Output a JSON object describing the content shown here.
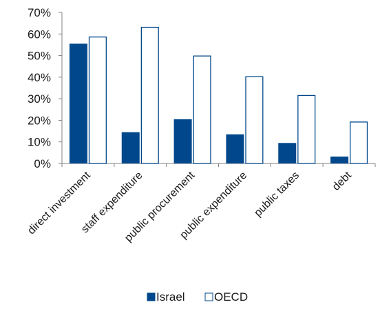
{
  "chart_data": {
    "type": "bar",
    "categories": [
      "direct investment",
      "staff expenditure",
      "public procurement",
      "public expenditure",
      "public taxes",
      "debt"
    ],
    "series": [
      {
        "name": "Israel",
        "values": [
          55.5,
          14.5,
          20.5,
          13.5,
          9.5,
          3.2
        ],
        "color": "#00488b",
        "fill": "solid"
      },
      {
        "name": "OECD",
        "values": [
          58.8,
          63.3,
          50.0,
          40.4,
          31.7,
          19.4
        ],
        "color": "#ffffff",
        "fill": "outline"
      }
    ],
    "y_ticks": [
      "0%",
      "10%",
      "20%",
      "30%",
      "40%",
      "50%",
      "60%",
      "70%"
    ],
    "ylim": [
      0,
      70
    ],
    "grid": false,
    "legend_position": "bottom",
    "title": "",
    "xlabel": "",
    "ylabel": ""
  }
}
